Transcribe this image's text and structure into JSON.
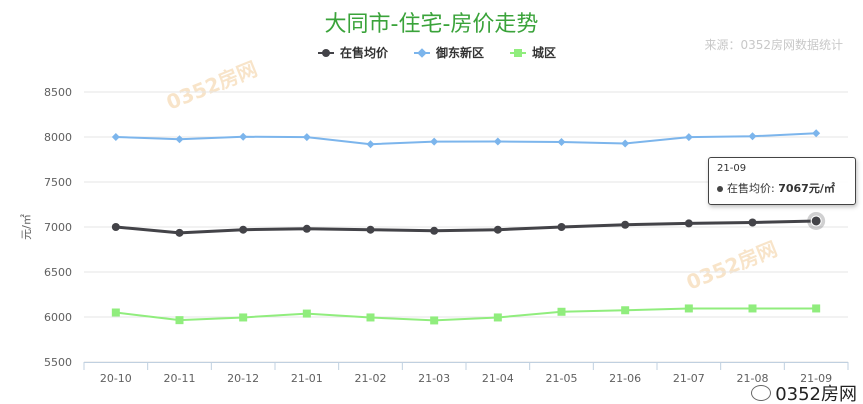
{
  "title": "大同市-住宅-房价走势",
  "source": "来源：0352房网数据统计",
  "watermark": "0352房网",
  "tooltip": {
    "category": "21-09",
    "series": "在售均价",
    "value": "7067元/㎡"
  },
  "colors": {
    "title": "#3aa33a",
    "series_onsale": "#434348",
    "series_yudong": "#7cb5ec",
    "series_chengqu": "#90ed7d"
  },
  "chart_data": {
    "type": "line",
    "categories": [
      "20-10",
      "20-11",
      "20-12",
      "21-01",
      "21-02",
      "21-03",
      "21-04",
      "21-05",
      "21-06",
      "21-07",
      "21-08",
      "21-09"
    ],
    "ylabel": "元/㎡",
    "ylim": [
      5500,
      8500
    ],
    "yticks": [
      5500,
      6000,
      6500,
      7000,
      7500,
      8000,
      8500
    ],
    "grid": true,
    "legend_position": "top-center",
    "series": [
      {
        "name": "在售均价",
        "marker": "circle",
        "color": "#434348",
        "values": [
          7000,
          6935,
          6970,
          6980,
          6970,
          6958,
          6970,
          7000,
          7025,
          7040,
          7050,
          7067
        ]
      },
      {
        "name": "御东新区",
        "marker": "diamond",
        "color": "#7cb5ec",
        "values": [
          8000,
          7975,
          8003,
          7998,
          7920,
          7948,
          7950,
          7945,
          7928,
          7998,
          8008,
          8042
        ]
      },
      {
        "name": "城区",
        "marker": "square",
        "color": "#90ed7d",
        "values": [
          6050,
          5965,
          5995,
          6038,
          5995,
          5962,
          5995,
          6058,
          6075,
          6095,
          6095,
          6095
        ]
      }
    ]
  }
}
